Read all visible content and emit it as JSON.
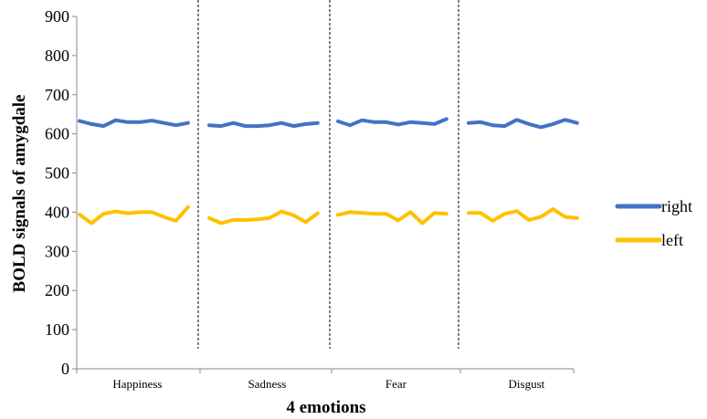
{
  "chart_data": {
    "type": "line",
    "title": "",
    "xlabel": "4 emotions",
    "ylabel": "BOLD signals of amygdale",
    "ylim": [
      0,
      900
    ],
    "yticks": [
      0,
      100,
      200,
      300,
      400,
      500,
      600,
      700,
      800,
      900
    ],
    "categories": [
      "Happiness",
      "Sadness",
      "Fear",
      "Disgust"
    ],
    "points_per_category": 10,
    "grid": false,
    "legend_position": "right",
    "series": [
      {
        "name": "right",
        "color": "#4472C4",
        "values": [
          [
            633,
            625,
            620,
            635,
            630,
            630,
            634,
            628,
            622,
            628
          ],
          [
            622,
            620,
            628,
            620,
            620,
            622,
            628,
            620,
            625,
            628
          ],
          [
            632,
            622,
            635,
            630,
            630,
            624,
            630,
            628,
            625,
            638
          ],
          [
            628,
            630,
            622,
            620,
            636,
            625,
            617,
            625,
            636,
            628
          ]
        ]
      },
      {
        "name": "left",
        "color": "#FFC000",
        "values": [
          [
            394,
            372,
            396,
            402,
            397,
            400,
            400,
            388,
            378,
            413
          ],
          [
            385,
            372,
            380,
            380,
            382,
            385,
            402,
            392,
            375,
            397
          ],
          [
            393,
            400,
            398,
            396,
            396,
            379,
            400,
            372,
            398,
            396
          ],
          [
            398,
            398,
            378,
            396,
            403,
            380,
            388,
            408,
            388,
            385
          ]
        ]
      }
    ]
  }
}
